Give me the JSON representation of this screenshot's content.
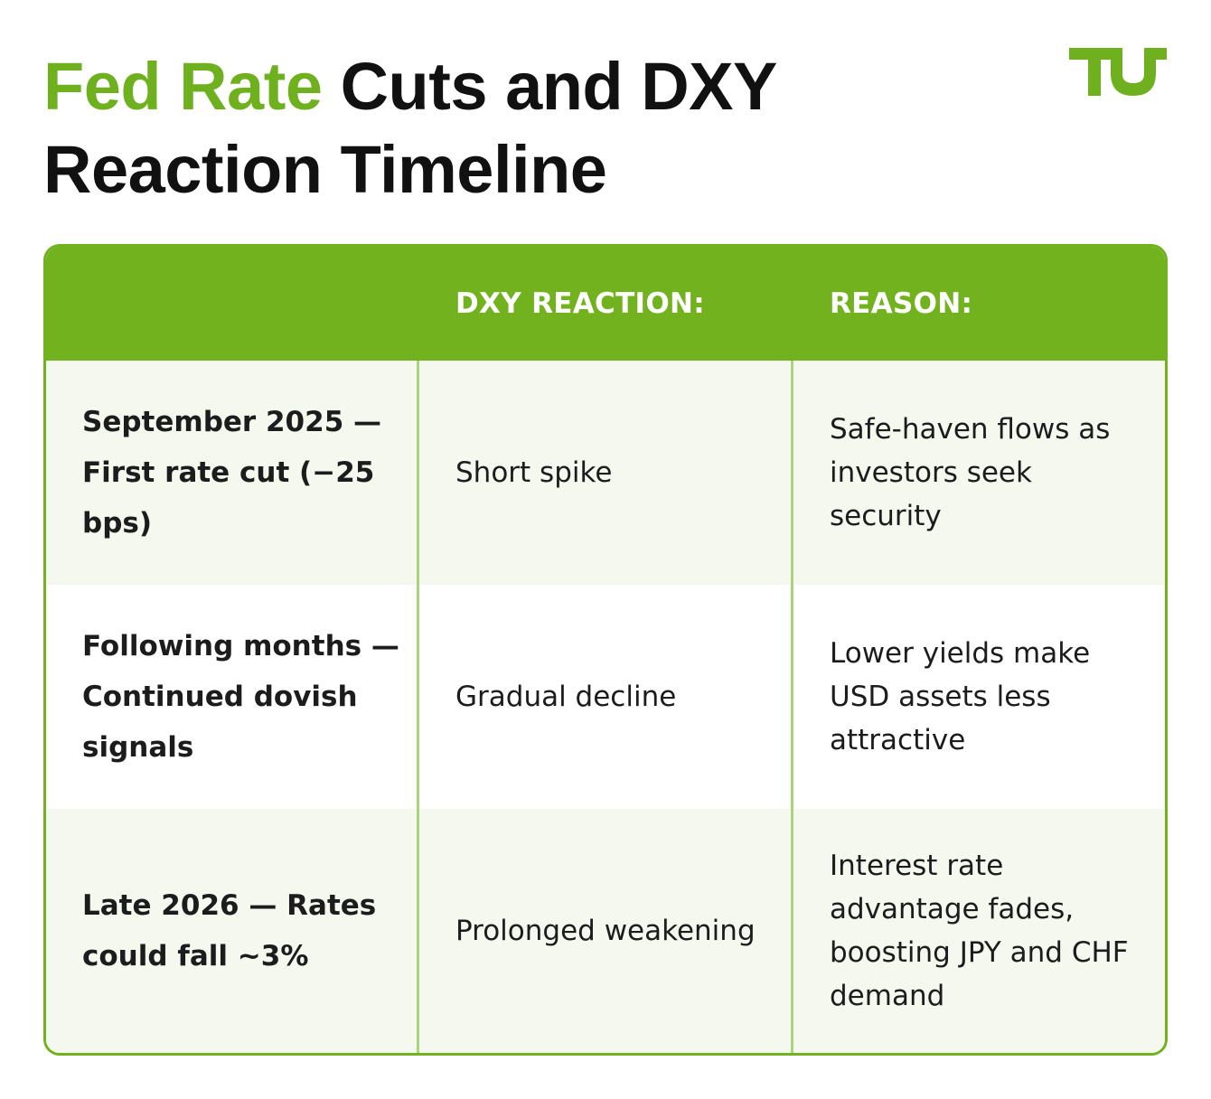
{
  "title": {
    "highlight": "Fed Rate",
    "rest": " Cuts and DXY Reaction Timeline"
  },
  "logo": {
    "icon": "tu-logo-icon",
    "color": "#6fb01f"
  },
  "colors": {
    "accent": "#72b21f",
    "row_shade": "#f4f8ef",
    "divider": "#a9d47a"
  },
  "table": {
    "headers": [
      "",
      "DXY REACTION:",
      "REASON:"
    ],
    "rows": [
      {
        "event": "September 2025 — First rate cut (−25 bps)",
        "reaction": "Short spike",
        "reason": "Safe-haven flows as investors seek security"
      },
      {
        "event": "Following months — Continued dovish signals",
        "reaction": "Gradual decline",
        "reason": "Lower yields make USD assets less attractive"
      },
      {
        "event": "Late 2026 — Rates could fall ~3%",
        "reaction": "Prolonged weakening",
        "reason": "Interest rate advantage fades, boosting JPY and CHF demand"
      }
    ]
  }
}
